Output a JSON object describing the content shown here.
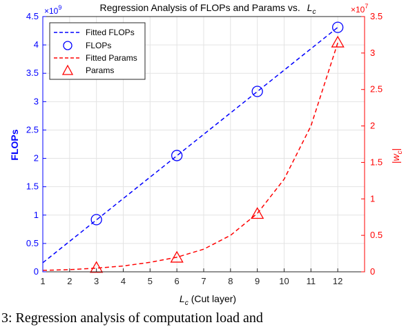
{
  "caption": "3: Regression analysis of computation load and",
  "chart_data": {
    "type": "line",
    "title_prefix": "Regression Analysis of FLOPs and Params vs.",
    "title_symbol": "L",
    "title_subscript": "c",
    "xlabel_symbol": "L",
    "xlabel_subscript": "c",
    "xlabel_suffix": "(Cut layer)",
    "ylabel_left": "FLOPs",
    "ylabel_right_symbol": "|w",
    "ylabel_right_subscript": "c",
    "ylabel_right_end": "|",
    "left_exponent_base": "×10",
    "left_exponent": "9",
    "right_exponent_base": "×10",
    "right_exponent": "7",
    "xlim": [
      1,
      13
    ],
    "ylim_left": [
      0,
      4.5
    ],
    "ylim_right": [
      0,
      3.5
    ],
    "x_ticks": [
      1,
      2,
      3,
      4,
      5,
      6,
      7,
      8,
      9,
      10,
      11,
      12
    ],
    "x_tick_labels": [
      "1",
      "2",
      "3",
      "4",
      "5",
      "6",
      "7",
      "8",
      "9",
      "10",
      "11",
      "12"
    ],
    "y_left_ticks": [
      0,
      0.5,
      1,
      1.5,
      2,
      2.5,
      3,
      3.5,
      4,
      4.5
    ],
    "y_left_tick_labels": [
      "0",
      "0.5",
      "1",
      "1.5",
      "2",
      "2.5",
      "3",
      "3.5",
      "4",
      "4.5"
    ],
    "y_right_ticks": [
      0,
      0.5,
      1,
      1.5,
      2,
      2.5,
      3,
      3.5
    ],
    "y_right_tick_labels": [
      "0",
      "0.5",
      "1",
      "1.5",
      "2",
      "2.5",
      "3",
      "3.5"
    ],
    "grid": true,
    "legend_position": "top-left",
    "colors": {
      "flops": "#0000ff",
      "params": "#ff0000",
      "grid": "#e3e3e3",
      "axis": "#262626"
    },
    "series": [
      {
        "name": "Fitted FLOPs",
        "axis": "left",
        "kind": "dashed-line",
        "x": [
          1,
          12
        ],
        "y": [
          0.16,
          4.31
        ]
      },
      {
        "name": "FLOPs",
        "axis": "left",
        "kind": "circle-markers",
        "x": [
          3,
          6,
          9,
          12
        ],
        "y": [
          0.92,
          2.05,
          3.18,
          4.31
        ]
      },
      {
        "name": "Fitted Params",
        "axis": "right",
        "kind": "dashed-curve",
        "x": [
          1,
          2,
          3,
          4,
          5,
          6,
          7,
          8,
          9,
          10,
          11,
          12
        ],
        "y": [
          0.02,
          0.03,
          0.05,
          0.08,
          0.13,
          0.2,
          0.31,
          0.5,
          0.8,
          1.27,
          2.0,
          3.14
        ]
      },
      {
        "name": "Params",
        "axis": "right",
        "kind": "triangle-markers",
        "x": [
          3,
          6,
          9,
          12
        ],
        "y": [
          0.05,
          0.19,
          0.79,
          3.14
        ]
      }
    ]
  }
}
